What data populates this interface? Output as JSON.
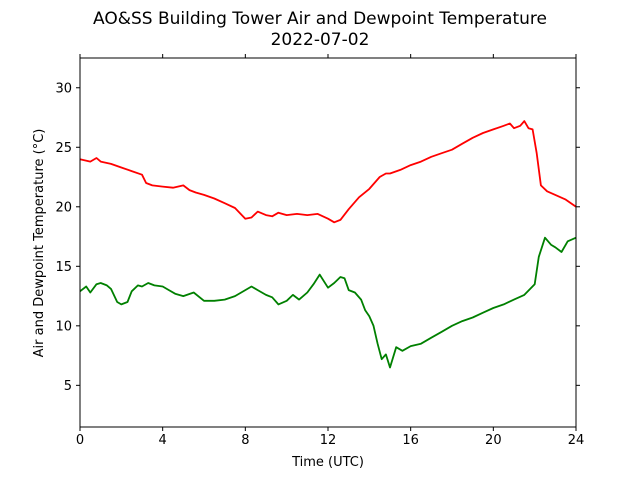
{
  "chart_data": {
    "type": "line",
    "title": "AO&SS Building Tower Air and Dewpoint Temperature",
    "subtitle": "2022-07-02",
    "xlabel": "Time (UTC)",
    "ylabel": "Air and Dewpoint Temperature (°C)",
    "xlim": [
      0,
      24
    ],
    "ylim": [
      1.5,
      32.5
    ],
    "xticks": [
      0,
      4,
      8,
      12,
      16,
      20,
      24
    ],
    "yticks": [
      5,
      10,
      15,
      20,
      25,
      30
    ],
    "grid": false,
    "legend": "none",
    "series": [
      {
        "color": "#ff0000",
        "x": [
          0,
          0.5,
          0.8,
          1,
          1.5,
          2,
          2.5,
          3,
          3.2,
          3.5,
          4,
          4.5,
          5,
          5.3,
          5.6,
          6,
          6.5,
          7,
          7.5,
          8,
          8.3,
          8.6,
          9,
          9.3,
          9.6,
          10,
          10.5,
          11,
          11.5,
          12,
          12.3,
          12.6,
          13,
          13.5,
          14,
          14.5,
          14.8,
          15,
          15.5,
          16,
          16.5,
          17,
          17.5,
          18,
          18.5,
          19,
          19.5,
          20,
          20.5,
          20.8,
          21,
          21.3,
          21.5,
          21.7,
          21.9,
          22.1,
          22.3,
          22.6,
          23,
          23.5,
          24
        ],
        "y": [
          24.0,
          23.8,
          24.1,
          23.8,
          23.6,
          23.3,
          23.0,
          22.7,
          22.0,
          21.8,
          21.7,
          21.6,
          21.8,
          21.4,
          21.2,
          21.0,
          20.7,
          20.3,
          19.9,
          19.0,
          19.1,
          19.6,
          19.3,
          19.2,
          19.5,
          19.3,
          19.4,
          19.3,
          19.4,
          19.0,
          18.7,
          18.9,
          19.8,
          20.8,
          21.5,
          22.5,
          22.8,
          22.8,
          23.1,
          23.5,
          23.8,
          24.2,
          24.5,
          24.8,
          25.3,
          25.8,
          26.2,
          26.5,
          26.8,
          27.0,
          26.6,
          26.8,
          27.2,
          26.6,
          26.5,
          24.5,
          21.8,
          21.3,
          21.0,
          20.6,
          20.0
        ]
      },
      {
        "color": "#008000",
        "x": [
          0,
          0.3,
          0.5,
          0.8,
          1,
          1.3,
          1.5,
          1.8,
          2,
          2.3,
          2.5,
          2.8,
          3,
          3.3,
          3.6,
          4,
          4.3,
          4.6,
          5,
          5.5,
          6,
          6.5,
          7,
          7.5,
          8,
          8.3,
          8.6,
          9,
          9.3,
          9.6,
          10,
          10.3,
          10.6,
          11,
          11.3,
          11.6,
          12,
          12.3,
          12.6,
          12.8,
          13,
          13.3,
          13.6,
          13.8,
          14,
          14.2,
          14.4,
          14.6,
          14.8,
          15,
          15.3,
          15.6,
          16,
          16.5,
          17,
          17.5,
          18,
          18.5,
          19,
          19.5,
          20,
          20.5,
          21,
          21.5,
          22,
          22.2,
          22.5,
          22.8,
          23,
          23.3,
          23.6,
          24
        ],
        "y": [
          12.9,
          13.3,
          12.8,
          13.5,
          13.6,
          13.4,
          13.1,
          12.0,
          11.8,
          12.0,
          12.9,
          13.4,
          13.3,
          13.6,
          13.4,
          13.3,
          13.0,
          12.7,
          12.5,
          12.8,
          12.1,
          12.1,
          12.2,
          12.5,
          13.0,
          13.3,
          13.0,
          12.6,
          12.4,
          11.8,
          12.1,
          12.6,
          12.2,
          12.8,
          13.5,
          14.3,
          13.2,
          13.6,
          14.1,
          14.0,
          13.0,
          12.8,
          12.2,
          11.3,
          10.8,
          10.0,
          8.5,
          7.2,
          7.6,
          6.5,
          8.2,
          7.9,
          8.3,
          8.5,
          9.0,
          9.5,
          10.0,
          10.4,
          10.7,
          11.1,
          11.5,
          11.8,
          12.2,
          12.6,
          13.5,
          15.8,
          17.4,
          16.8,
          16.6,
          16.2,
          17.1,
          17.4
        ]
      }
    ]
  }
}
